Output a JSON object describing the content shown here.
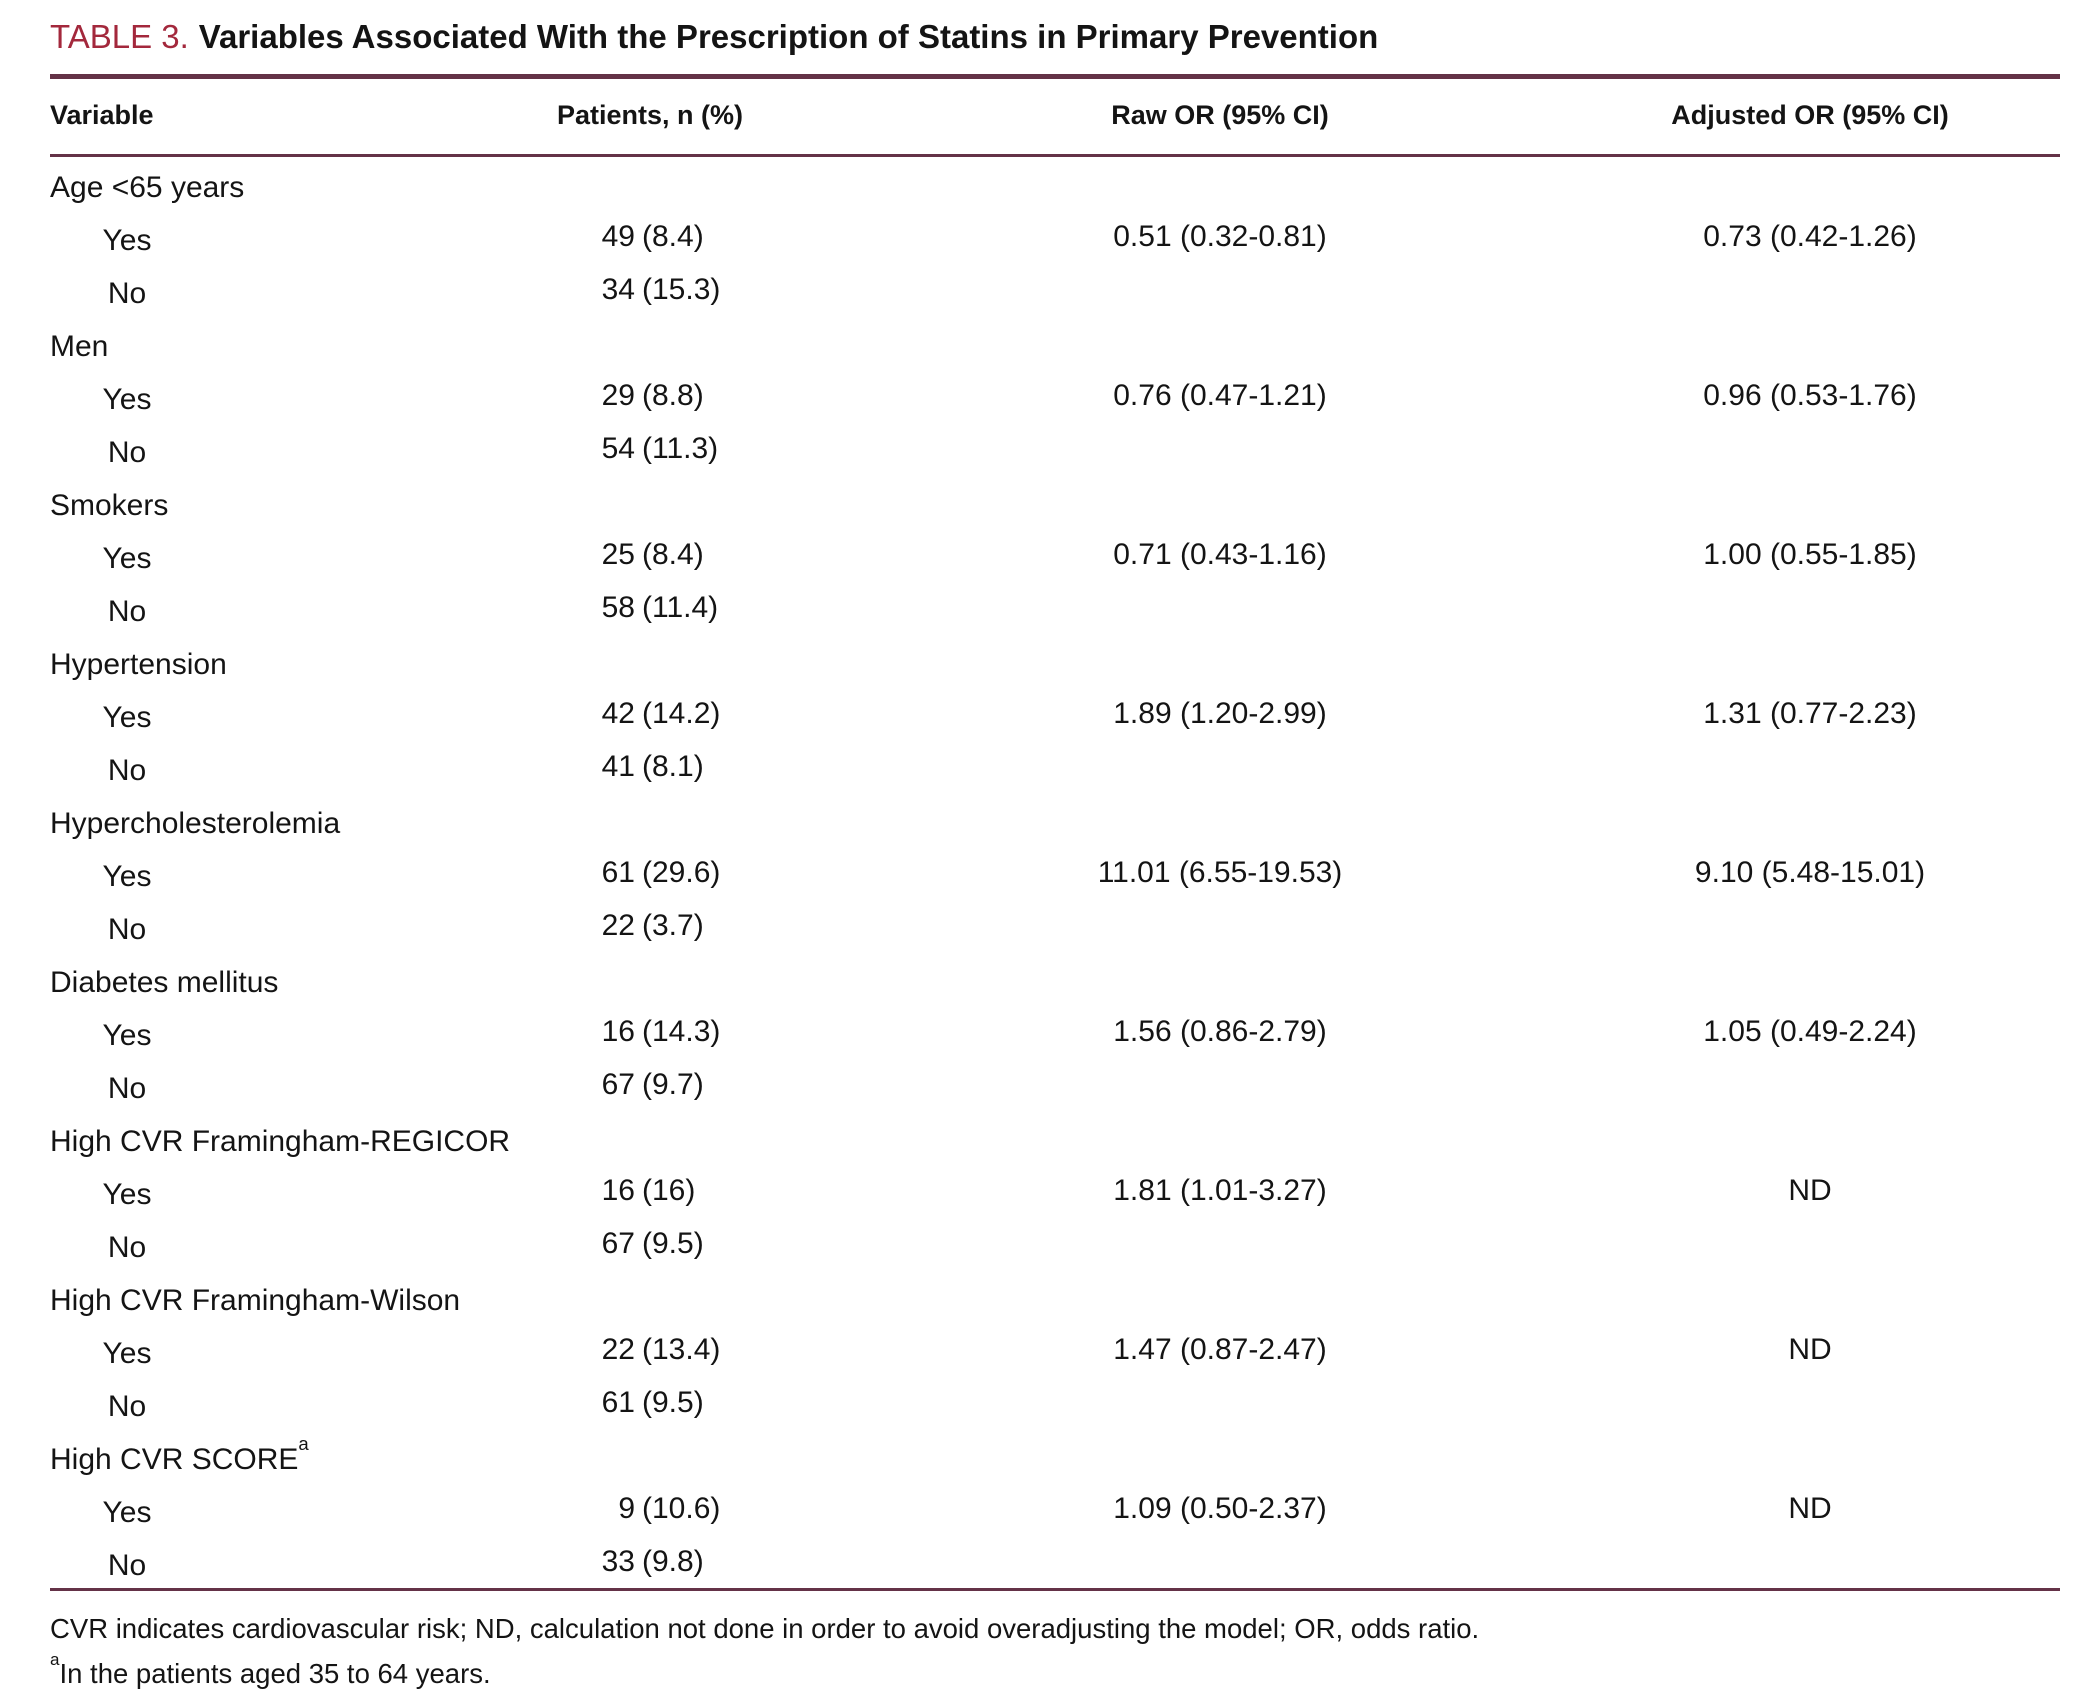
{
  "title": {
    "label": "TABLE 3.",
    "text": "Variables Associated With the Prescription of Statins in Primary Prevention"
  },
  "colors": {
    "accent_red": "#a3283c",
    "rule_maroon": "#643247",
    "background": "#ffffff",
    "text": "#141414"
  },
  "table": {
    "columns": [
      "Variable",
      "Patients, n (%)",
      "Raw OR (95% CI)",
      "Adjusted OR (95% CI)"
    ],
    "rows": [
      {
        "kind": "group",
        "label": "Age <65 years"
      },
      {
        "kind": "sub",
        "label": "Yes",
        "patients_n": "49",
        "patients_pct": "(8.4)",
        "raw": "0.51 (0.32-0.81)",
        "adj": "0.73 (0.42-1.26)"
      },
      {
        "kind": "sub",
        "label": "No",
        "patients_n": "34",
        "patients_pct": "(15.3)"
      },
      {
        "kind": "group",
        "label": "Men"
      },
      {
        "kind": "sub",
        "label": "Yes",
        "patients_n": "29",
        "patients_pct": "(8.8)",
        "raw": "0.76 (0.47-1.21)",
        "adj": "0.96 (0.53-1.76)"
      },
      {
        "kind": "sub",
        "label": "No",
        "patients_n": "54",
        "patients_pct": "(11.3)"
      },
      {
        "kind": "group",
        "label": "Smokers"
      },
      {
        "kind": "sub",
        "label": "Yes",
        "patients_n": "25",
        "patients_pct": "(8.4)",
        "raw": "0.71 (0.43-1.16)",
        "adj": "1.00 (0.55-1.85)"
      },
      {
        "kind": "sub",
        "label": "No",
        "patients_n": "58",
        "patients_pct": "(11.4)"
      },
      {
        "kind": "group",
        "label": "Hypertension"
      },
      {
        "kind": "sub",
        "label": "Yes",
        "patients_n": "42",
        "patients_pct": "(14.2)",
        "raw": "1.89 (1.20-2.99)",
        "adj": "1.31 (0.77-2.23)"
      },
      {
        "kind": "sub",
        "label": "No",
        "patients_n": "41",
        "patients_pct": "(8.1)"
      },
      {
        "kind": "group",
        "label": "Hypercholesterolemia"
      },
      {
        "kind": "sub",
        "label": "Yes",
        "patients_n": "61",
        "patients_pct": "(29.6)",
        "raw": "11.01 (6.55-19.53)",
        "adj": "9.10 (5.48-15.01)"
      },
      {
        "kind": "sub",
        "label": "No",
        "patients_n": "22",
        "patients_pct": "(3.7)"
      },
      {
        "kind": "group",
        "label": "Diabetes mellitus"
      },
      {
        "kind": "sub",
        "label": "Yes",
        "patients_n": "16",
        "patients_pct": "(14.3)",
        "raw": "1.56 (0.86-2.79)",
        "adj": "1.05 (0.49-2.24)"
      },
      {
        "kind": "sub",
        "label": "No",
        "patients_n": "67",
        "patients_pct": "(9.7)"
      },
      {
        "kind": "group",
        "label": "High CVR Framingham-REGICOR"
      },
      {
        "kind": "sub",
        "label": "Yes",
        "patients_n": "16",
        "patients_pct": "(16)",
        "raw": "1.81 (1.01-3.27)",
        "adj": "ND"
      },
      {
        "kind": "sub",
        "label": "No",
        "patients_n": "67",
        "patients_pct": "(9.5)"
      },
      {
        "kind": "group",
        "label": "High CVR Framingham-Wilson"
      },
      {
        "kind": "sub",
        "label": "Yes",
        "patients_n": "22",
        "patients_pct": "(13.4)",
        "raw": "1.47 (0.87-2.47)",
        "adj": "ND"
      },
      {
        "kind": "sub",
        "label": "No",
        "patients_n": "61",
        "patients_pct": "(9.5)"
      },
      {
        "kind": "group",
        "label": "High CVR SCORE",
        "sup": "a"
      },
      {
        "kind": "sub",
        "label": "Yes",
        "patients_n": "9",
        "patients_pct": "(10.6)",
        "raw": "1.09 (0.50-2.37)",
        "adj": "ND"
      },
      {
        "kind": "sub",
        "label": "No",
        "patients_n": "33",
        "patients_pct": "(9.8)"
      }
    ]
  },
  "footer": {
    "note1": "CVR indicates cardiovascular risk; ND, calculation not done in order to avoid overadjusting the model; OR, odds ratio.",
    "note2_sup": "a",
    "note2": "In the patients aged 35 to 64 years."
  }
}
